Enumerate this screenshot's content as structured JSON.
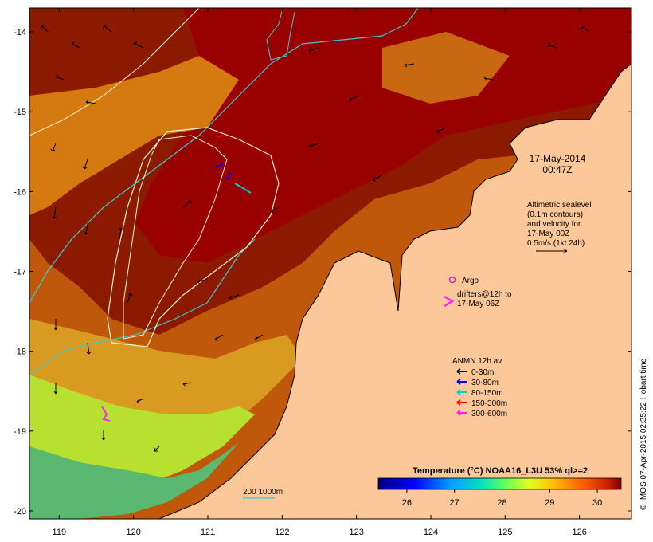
{
  "map": {
    "lat_ticks": [
      "-14",
      "-15",
      "-16",
      "-17",
      "-18",
      "-19",
      "-20"
    ],
    "lon_ticks": [
      "119",
      "120",
      "121",
      "122",
      "123",
      "124",
      "125",
      "126"
    ],
    "lat_range": [
      -20.1,
      -13.7
    ],
    "lon_range": [
      118.6,
      126.7
    ]
  },
  "timestamp": {
    "date": "17-May-2014",
    "time": "00:47Z"
  },
  "altimetry": {
    "lines": [
      "Altimetric sealevel",
      "(0.1m contours)",
      "and velocity for",
      "17-May 00Z",
      "0.5m/s (1kt 24h)"
    ]
  },
  "argo": {
    "label": "Argo",
    "color": "#cc22cc"
  },
  "drifters": {
    "lines": [
      "drifters@12h to",
      "17-May 06Z"
    ],
    "color": "#ff22ff"
  },
  "anmn": {
    "title": "ANMN 12h av.",
    "items": [
      {
        "label": "0-30m",
        "color": "#000000"
      },
      {
        "label": "30-80m",
        "color": "#0000ee"
      },
      {
        "label": "80-150m",
        "color": "#00cccc"
      },
      {
        "label": "150-300m",
        "color": "#ee0000"
      },
      {
        "label": "300-600m",
        "color": "#ff22ff"
      }
    ]
  },
  "colorbar": {
    "title": "Temperature (°C) NOAA16_L3U 53% ql>=2",
    "ticks": [
      "26",
      "27",
      "28",
      "29",
      "30"
    ],
    "range": [
      25.4,
      30.5
    ]
  },
  "depth_contours": {
    "label": "200  1000m"
  },
  "credit": "© IMOS 07-Apr-2015 02:35:22 Hobart time",
  "colors": {
    "land": "#fcc89a",
    "warm": "#8b0000",
    "shelf_contour": "#40c8c8",
    "altimetry_contour": "#f0f0d0"
  }
}
